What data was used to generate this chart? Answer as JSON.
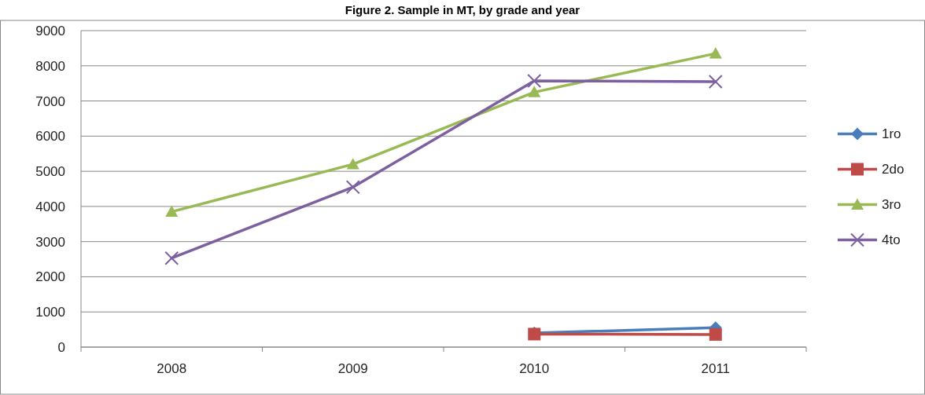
{
  "chart_data": {
    "type": "line",
    "title": "Figure 2. Sample in MT, by grade and year",
    "categories": [
      "2008",
      "2009",
      "2010",
      "2011"
    ],
    "series": [
      {
        "name": "1ro",
        "color": "#4a7ebb",
        "marker": "diamond",
        "values": [
          null,
          null,
          400,
          550
        ]
      },
      {
        "name": "2do",
        "color": "#be4b48",
        "marker": "square",
        "values": [
          null,
          null,
          370,
          360
        ]
      },
      {
        "name": "3ro",
        "color": "#98b954",
        "marker": "triangle",
        "values": [
          3850,
          5200,
          7250,
          8350
        ]
      },
      {
        "name": "4to",
        "color": "#7d60a0",
        "marker": "cross",
        "values": [
          2530,
          4550,
          7570,
          7550
        ]
      }
    ],
    "ylim": [
      0,
      9000
    ],
    "yticks": [
      0,
      1000,
      2000,
      3000,
      4000,
      5000,
      6000,
      7000,
      8000,
      9000
    ],
    "grid": "y",
    "legend": "right"
  }
}
